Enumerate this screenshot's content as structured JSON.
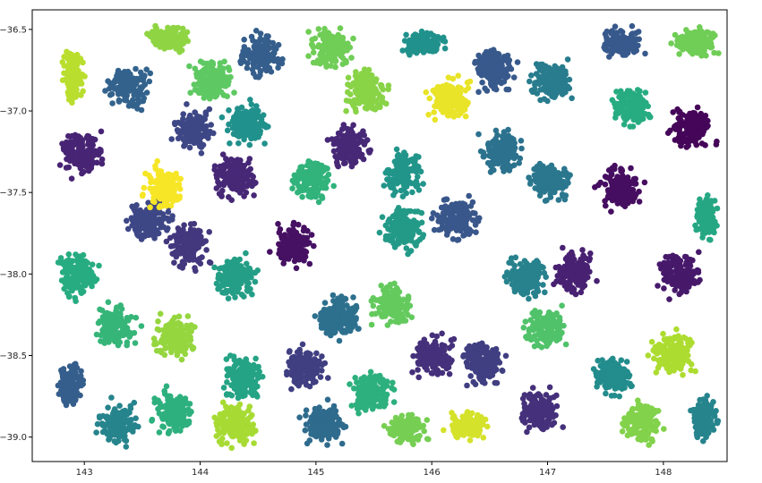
{
  "chart_data": {
    "type": "scatter",
    "title": "",
    "xlabel": "",
    "ylabel": "",
    "xlim": [
      142.55,
      148.55
    ],
    "ylim": [
      -39.15,
      -36.38
    ],
    "x_ticks": [
      143,
      144,
      145,
      146,
      147,
      148
    ],
    "x_tick_labels": [
      "143",
      "144",
      "145",
      "146",
      "147",
      "148"
    ],
    "y_ticks": [
      -36.5,
      -37.0,
      -37.5,
      -38.0,
      -38.5,
      -39.0
    ],
    "y_tick_labels": [
      "−36.5",
      "−37.0",
      "−37.5",
      "−38.0",
      "−38.5",
      "−39.0"
    ],
    "grid": false,
    "legend": "none",
    "colormap": "viridis",
    "point_color_hex": "#2e6f8e",
    "cluster_half_width": 0.22,
    "cluster_half_height": 0.16,
    "clusters": [
      {
        "x": 142.9,
        "y": -36.78,
        "value": 0.9,
        "half_width": 0.11,
        "half_height": 0.17
      },
      {
        "x": 143.38,
        "y": -36.85,
        "value": 0.32
      },
      {
        "x": 143.73,
        "y": -36.56,
        "value": 0.83,
        "half_height": 0.09
      },
      {
        "x": 144.1,
        "y": -36.82,
        "value": 0.75
      },
      {
        "x": 144.52,
        "y": -36.65,
        "value": 0.3
      },
      {
        "x": 145.13,
        "y": -36.62,
        "value": 0.78
      },
      {
        "x": 145.44,
        "y": -36.88,
        "value": 0.82
      },
      {
        "x": 145.92,
        "y": -36.58,
        "value": 0.5,
        "half_height": 0.09
      },
      {
        "x": 146.14,
        "y": -36.93,
        "value": 0.97
      },
      {
        "x": 146.55,
        "y": -36.75,
        "value": 0.28
      },
      {
        "x": 147.03,
        "y": -36.82,
        "value": 0.42
      },
      {
        "x": 147.64,
        "y": -36.58,
        "value": 0.28,
        "half_height": 0.11
      },
      {
        "x": 147.72,
        "y": -36.97,
        "value": 0.62
      },
      {
        "x": 148.27,
        "y": -36.58,
        "value": 0.78,
        "half_height": 0.1
      },
      {
        "x": 142.98,
        "y": -37.26,
        "value": 0.13
      },
      {
        "x": 143.56,
        "y": -37.67,
        "value": 0.22
      },
      {
        "x": 143.95,
        "y": -37.12,
        "value": 0.22
      },
      {
        "x": 143.7,
        "y": -37.47,
        "value": 0.99
      },
      {
        "x": 144.3,
        "y": -37.4,
        "value": 0.14
      },
      {
        "x": 144.4,
        "y": -37.08,
        "value": 0.5
      },
      {
        "x": 143.9,
        "y": -37.83,
        "value": 0.18
      },
      {
        "x": 144.8,
        "y": -37.82,
        "value": 0.06
      },
      {
        "x": 144.97,
        "y": -37.42,
        "value": 0.65
      },
      {
        "x": 145.28,
        "y": -37.22,
        "value": 0.14
      },
      {
        "x": 145.76,
        "y": -37.38,
        "value": 0.52
      },
      {
        "x": 145.75,
        "y": -37.72,
        "value": 0.54
      },
      {
        "x": 146.22,
        "y": -37.66,
        "value": 0.27
      },
      {
        "x": 146.6,
        "y": -37.25,
        "value": 0.38
      },
      {
        "x": 146.82,
        "y": -38.02,
        "value": 0.44
      },
      {
        "x": 147.02,
        "y": -37.42,
        "value": 0.4
      },
      {
        "x": 147.25,
        "y": -37.99,
        "value": 0.12
      },
      {
        "x": 147.62,
        "y": -37.48,
        "value": 0.05
      },
      {
        "x": 148.25,
        "y": -37.11,
        "value": 0.02
      },
      {
        "x": 148.37,
        "y": -37.65,
        "value": 0.6,
        "half_width": 0.11,
        "half_height": 0.17
      },
      {
        "x": 142.95,
        "y": -38.01,
        "value": 0.62
      },
      {
        "x": 143.28,
        "y": -38.32,
        "value": 0.66
      },
      {
        "x": 143.78,
        "y": -38.39,
        "value": 0.84
      },
      {
        "x": 144.3,
        "y": -38.02,
        "value": 0.56
      },
      {
        "x": 144.37,
        "y": -38.64,
        "value": 0.58
      },
      {
        "x": 144.9,
        "y": -38.57,
        "value": 0.2
      },
      {
        "x": 145.2,
        "y": -38.26,
        "value": 0.37
      },
      {
        "x": 145.66,
        "y": -38.19,
        "value": 0.76
      },
      {
        "x": 145.48,
        "y": -38.72,
        "value": 0.64
      },
      {
        "x": 146.0,
        "y": -38.51,
        "value": 0.16
      },
      {
        "x": 146.45,
        "y": -38.55,
        "value": 0.2
      },
      {
        "x": 146.98,
        "y": -38.33,
        "value": 0.72
      },
      {
        "x": 146.93,
        "y": -38.84,
        "value": 0.16
      },
      {
        "x": 147.56,
        "y": -38.62,
        "value": 0.48
      },
      {
        "x": 148.07,
        "y": -38.49,
        "value": 0.88
      },
      {
        "x": 148.14,
        "y": -38.0,
        "value": 0.09
      },
      {
        "x": 142.88,
        "y": -38.68,
        "value": 0.3,
        "half_width": 0.12,
        "half_height": 0.17
      },
      {
        "x": 143.3,
        "y": -38.92,
        "value": 0.45
      },
      {
        "x": 143.78,
        "y": -38.85,
        "value": 0.64
      },
      {
        "x": 144.3,
        "y": -38.92,
        "value": 0.87
      },
      {
        "x": 145.07,
        "y": -38.92,
        "value": 0.35
      },
      {
        "x": 145.78,
        "y": -38.95,
        "value": 0.79,
        "half_height": 0.1
      },
      {
        "x": 146.3,
        "y": -38.93,
        "value": 0.94,
        "half_height": 0.1
      },
      {
        "x": 147.82,
        "y": -38.91,
        "value": 0.81
      },
      {
        "x": 148.35,
        "y": -38.88,
        "value": 0.45,
        "half_width": 0.14
      }
    ]
  }
}
